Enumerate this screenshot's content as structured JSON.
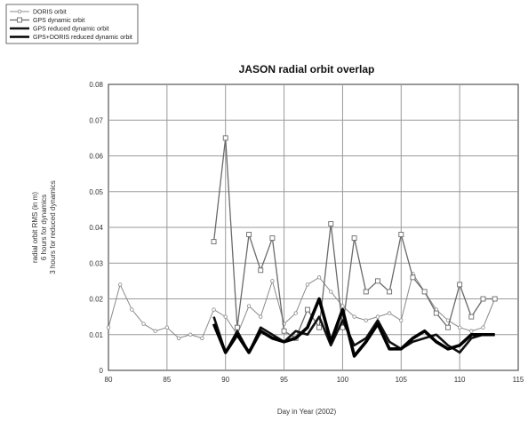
{
  "chart_data": {
    "type": "line",
    "title": "JASON radial orbit overlap",
    "xlabel": "Day in Year (2002)",
    "ylabel_lines": [
      "radial orbit RMS (in m)",
      "6 hours for dynamics",
      "3 hours for reduced dynamics"
    ],
    "xlim": [
      80,
      115
    ],
    "ylim": [
      0,
      0.08
    ],
    "xticks": [
      80,
      85,
      90,
      95,
      100,
      105,
      110,
      115
    ],
    "xtick_labels": [
      "80",
      "85",
      "90",
      "95",
      "100",
      "105",
      "110",
      "115"
    ],
    "yticks": [
      0,
      0.01,
      0.02,
      0.03,
      0.04,
      0.05,
      0.06,
      0.07,
      0.08
    ],
    "ytick_labels": [
      "0",
      "0.01",
      "0.02",
      "0.03",
      "0.04",
      "0.05",
      "0.06",
      "0.07",
      "0.08"
    ],
    "grid": true,
    "legend_position": "top-left, outside plot",
    "series": [
      {
        "name": "DORIS orbit",
        "style": "thin gray line, small circle markers",
        "color": "#8a8a8a",
        "x": [
          80,
          81,
          82,
          83,
          84,
          85,
          86,
          87,
          88,
          89,
          90,
          91,
          92,
          93,
          94,
          95,
          96,
          97,
          98,
          99,
          100,
          101,
          102,
          103,
          104,
          105,
          106,
          107,
          108,
          109,
          110,
          111,
          112,
          113
        ],
        "y": [
          0.012,
          0.024,
          0.017,
          0.013,
          0.011,
          0.012,
          0.009,
          0.01,
          0.009,
          0.017,
          0.015,
          0.01,
          0.018,
          0.015,
          0.025,
          0.013,
          0.016,
          0.024,
          0.026,
          0.022,
          0.018,
          0.015,
          0.014,
          0.015,
          0.016,
          0.014,
          0.027,
          0.022,
          0.017,
          0.014,
          0.012,
          0.011,
          0.012,
          0.02
        ]
      },
      {
        "name": "GPS dynamic orbit",
        "style": "medium gray line, square markers",
        "color": "#6a6a6a",
        "x": [
          89,
          90,
          91,
          92,
          93,
          94,
          95,
          96,
          97,
          98,
          99,
          100,
          101,
          102,
          103,
          104,
          105,
          106,
          107,
          108,
          109,
          110,
          111,
          112,
          113
        ],
        "y": [
          0.036,
          0.065,
          0.012,
          0.038,
          0.028,
          0.037,
          0.011,
          0.009,
          0.017,
          0.012,
          0.041,
          0.012,
          0.037,
          0.022,
          0.025,
          0.022,
          0.038,
          0.026,
          0.022,
          0.016,
          0.012,
          0.024,
          0.015,
          0.02,
          0.02
        ]
      },
      {
        "name": "GPS reduced dynamic orbit",
        "style": "thick black line",
        "color": "#111111",
        "x": [
          89,
          90,
          91,
          92,
          93,
          94,
          95,
          96,
          97,
          98,
          99,
          100,
          101,
          102,
          103,
          104,
          105,
          106,
          107,
          108,
          109,
          110,
          111,
          112,
          113
        ],
        "y": [
          0.015,
          0.005,
          0.011,
          0.005,
          0.012,
          0.01,
          0.008,
          0.011,
          0.01,
          0.015,
          0.007,
          0.014,
          0.007,
          0.009,
          0.014,
          0.008,
          0.006,
          0.008,
          0.009,
          0.01,
          0.007,
          0.005,
          0.009,
          0.01,
          0.01
        ]
      },
      {
        "name": "GPS+DORIS reduced dynamic orbit",
        "style": "extra-thick black line",
        "color": "#000000",
        "x": [
          89,
          90,
          91,
          92,
          93,
          94,
          95,
          96,
          97,
          98,
          99,
          100,
          101,
          102,
          103,
          104,
          105,
          106,
          107,
          108,
          109,
          110,
          111,
          112,
          113
        ],
        "y": [
          0.013,
          0.005,
          0.01,
          0.005,
          0.011,
          0.009,
          0.008,
          0.009,
          0.012,
          0.02,
          0.008,
          0.017,
          0.004,
          0.008,
          0.013,
          0.006,
          0.006,
          0.009,
          0.011,
          0.008,
          0.006,
          0.007,
          0.01,
          0.01,
          0.01
        ]
      }
    ]
  }
}
